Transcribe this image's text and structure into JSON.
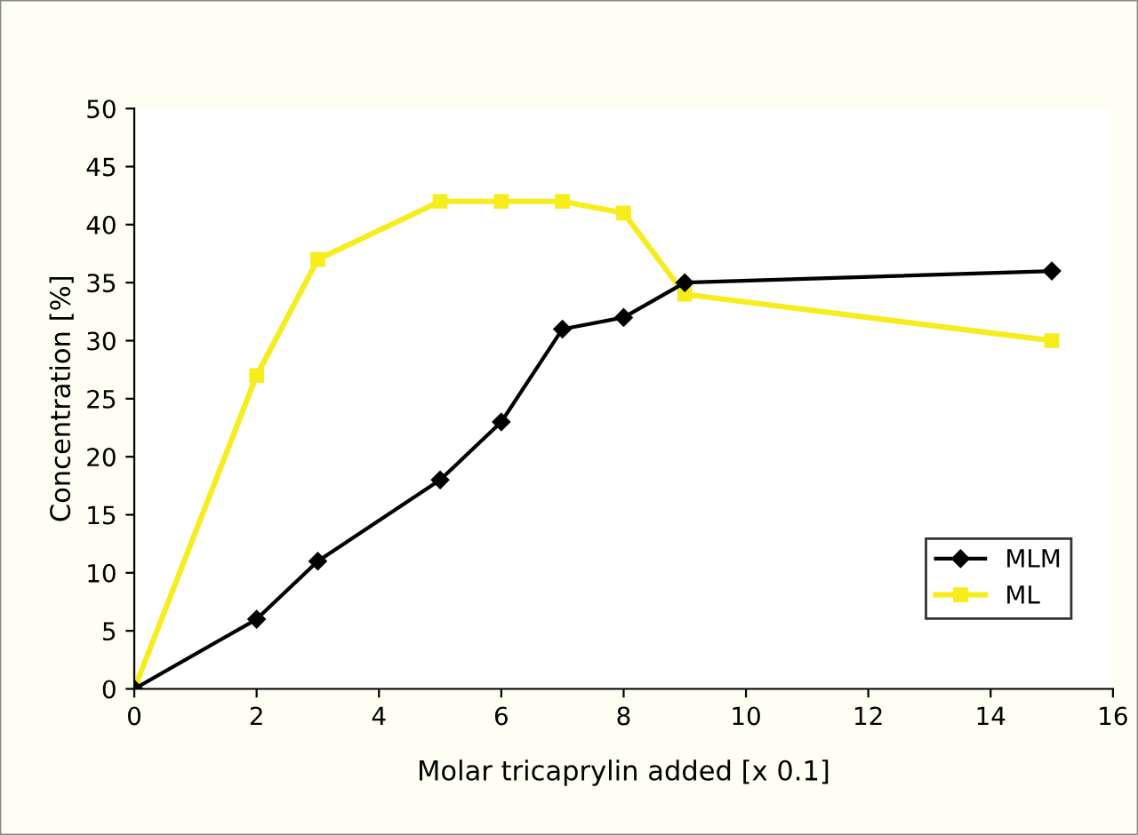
{
  "chart_data": {
    "type": "line",
    "xlabel": "Molar tricaprylin added [x 0.1]",
    "ylabel": "Concentration [%]",
    "xlim": [
      0,
      16
    ],
    "xticks": [
      0,
      2,
      4,
      6,
      8,
      10,
      12,
      14,
      16
    ],
    "ylim": [
      0,
      50
    ],
    "yticks": [
      0,
      5,
      10,
      15,
      20,
      25,
      30,
      35,
      40,
      45,
      50
    ],
    "grid": false,
    "legend": "bottom right",
    "line_style": "solid",
    "series": [
      {
        "name": "MLM",
        "color": "#000000",
        "marker": "diamond",
        "x": [
          0,
          2,
          3,
          5,
          6,
          7,
          8,
          9,
          15
        ],
        "values": [
          0,
          6,
          11,
          18,
          23,
          31,
          32,
          35,
          36
        ]
      },
      {
        "name": "ML",
        "color": "#f7ec1c",
        "marker": "square",
        "x": [
          0,
          2,
          3,
          5,
          6,
          7,
          8,
          9,
          15
        ],
        "values": [
          0,
          27,
          37,
          42,
          42,
          42,
          41,
          34,
          30
        ]
      }
    ]
  }
}
